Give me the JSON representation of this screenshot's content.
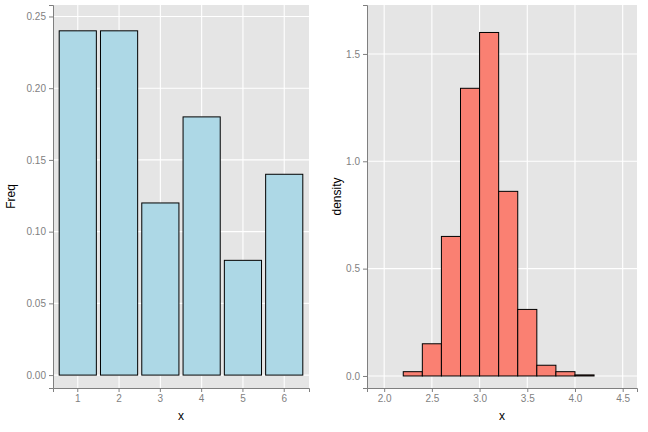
{
  "chart_data": [
    {
      "type": "bar",
      "x_label": "x",
      "y_label": "Freq",
      "categories": [
        "1",
        "2",
        "3",
        "4",
        "5",
        "6"
      ],
      "values": [
        0.24,
        0.24,
        0.12,
        0.18,
        0.08,
        0.14
      ],
      "color": "#add8e6",
      "ylim": [
        -0.009,
        0.258
      ],
      "yticks": [
        {
          "value": 0,
          "label": "0.00"
        },
        {
          "value": 0.05,
          "label": "0.05"
        },
        {
          "value": 0.1,
          "label": "0.10"
        },
        {
          "value": 0.15,
          "label": "0.15"
        },
        {
          "value": 0.2,
          "label": "0.20"
        },
        {
          "value": 0.25,
          "label": "0.25"
        }
      ],
      "grid": true
    },
    {
      "type": "histogram",
      "x_label": "x",
      "y_label": "density",
      "bins": [
        2.0,
        2.2,
        2.4,
        2.6,
        2.8,
        3.0,
        3.2,
        3.4,
        3.6,
        3.8,
        4.0,
        4.2,
        4.4
      ],
      "values": [
        0.0,
        0.02,
        0.15,
        0.65,
        1.34,
        1.6,
        0.86,
        0.31,
        0.05,
        0.02,
        0.005,
        0.0
      ],
      "color": "#fa8072",
      "xlim": [
        1.82,
        4.65
      ],
      "xticks": [
        {
          "value": 2,
          "label": "2.0"
        },
        2.5,
        {
          "value": 3,
          "label": "3.0"
        },
        3.5,
        {
          "value": 4,
          "label": "4.0"
        },
        4.5
      ],
      "ylim": [
        -0.056,
        1.728
      ],
      "yticks": [
        {
          "value": 0,
          "label": "0.0"
        },
        0.5,
        {
          "value": 1,
          "label": "1.0"
        },
        1.5
      ],
      "grid": true
    }
  ]
}
